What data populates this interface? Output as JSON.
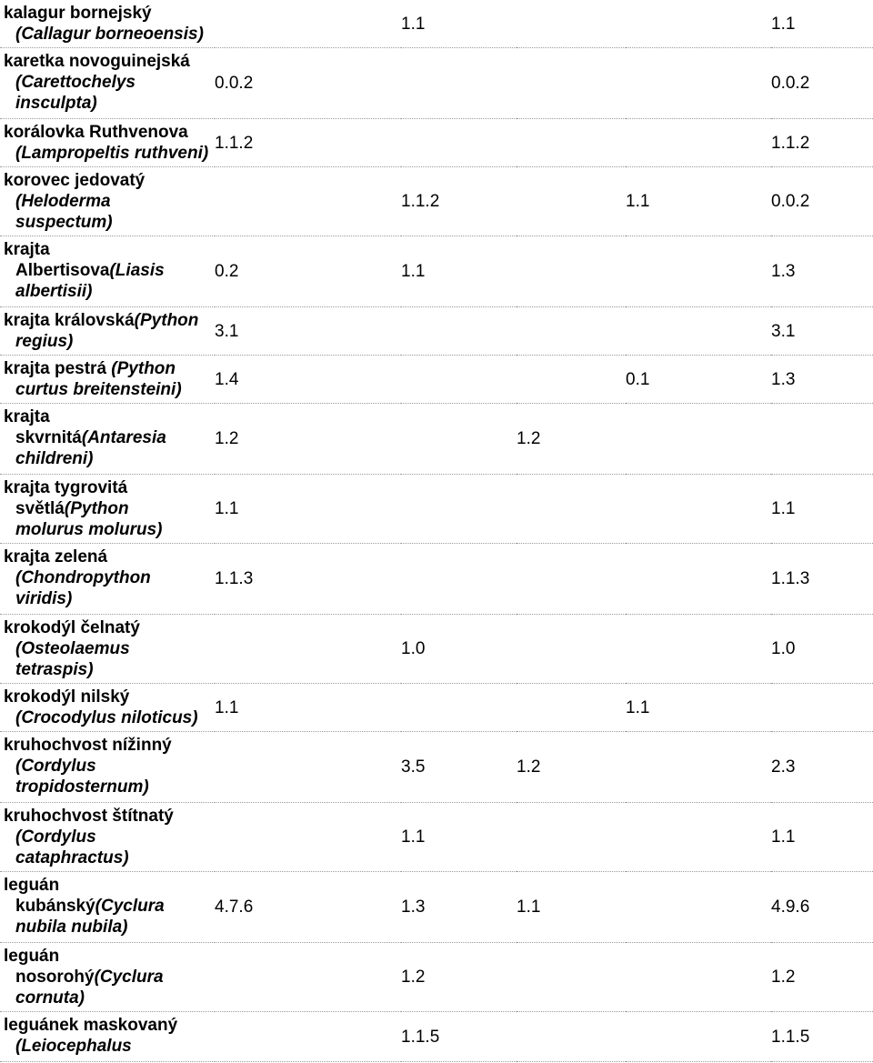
{
  "table": {
    "rows": [
      {
        "name_lines": [
          {
            "plain": "kalagur bornejský",
            "italic": ""
          },
          {
            "plain": "",
            "italic": "(Callagur borneoensis)"
          }
        ],
        "values": [
          "",
          "1.1",
          "",
          "",
          "1.1"
        ],
        "height": 50
      },
      {
        "name_lines": [
          {
            "plain": "karetka novoguinejská",
            "italic": ""
          },
          {
            "plain": "",
            "italic": "(Carettochelys"
          },
          {
            "plain": "",
            "italic": "insculpta)"
          }
        ],
        "values": [
          "0.0.2",
          "",
          "",
          "",
          "0.0.2"
        ],
        "height": 78
      },
      {
        "name_lines": [
          {
            "plain": "korálovka Ruthvenova",
            "italic": ""
          },
          {
            "plain": "",
            "italic": "(Lampropeltis ruthveni)"
          }
        ],
        "values": [
          "1.1.2",
          "",
          "",
          "",
          "1.1.2"
        ],
        "height": 52
      },
      {
        "name_lines": [
          {
            "plain": "korovec jedovatý",
            "italic": ""
          },
          {
            "plain": "",
            "italic": "(Heloderma"
          },
          {
            "plain": "",
            "italic": "suspectum)"
          }
        ],
        "values": [
          "",
          "1.1.2",
          "",
          "1.1",
          "0.0.2"
        ],
        "height": 76
      },
      {
        "name_lines": [
          {
            "plain": "krajta",
            "italic": ""
          },
          {
            "plain": "Albertisova",
            "italic": "(Liasis"
          },
          {
            "plain": "",
            "italic": "albertisii)"
          }
        ],
        "values": [
          "0.2",
          "1.1",
          "",
          "",
          "1.3"
        ],
        "height": 78
      },
      {
        "name_lines": [
          {
            "plain": "krajta královská",
            "italic": "(Python"
          },
          {
            "plain": "",
            "italic": "regius)"
          }
        ],
        "values": [
          "3.1",
          "",
          "",
          "",
          "3.1"
        ],
        "height": 52
      },
      {
        "name_lines": [
          {
            "plain": "krajta pestrá ",
            "italic": "(Python"
          },
          {
            "plain": "",
            "italic": "curtus breitensteini)"
          }
        ],
        "values": [
          "1.4",
          "",
          "",
          "0.1",
          "1.3"
        ],
        "height": 52
      },
      {
        "name_lines": [
          {
            "plain": "krajta",
            "italic": ""
          },
          {
            "plain": "skvrnitá",
            "italic": "(Antaresia"
          },
          {
            "plain": "",
            "italic": "childreni)"
          }
        ],
        "values": [
          "1.2",
          "",
          "1.2",
          "",
          ""
        ],
        "height": 78
      },
      {
        "name_lines": [
          {
            "plain": "krajta tygrovitá",
            "italic": ""
          },
          {
            "plain": "světlá",
            "italic": "(Python"
          },
          {
            "plain": "",
            "italic": "molurus molurus)"
          }
        ],
        "values": [
          "1.1",
          "",
          "",
          "",
          "1.1"
        ],
        "height": 76
      },
      {
        "name_lines": [
          {
            "plain": "krajta zelená",
            "italic": ""
          },
          {
            "plain": "",
            "italic": "(Chondropython"
          },
          {
            "plain": "",
            "italic": "viridis)"
          }
        ],
        "values": [
          "1.1.3",
          "",
          "",
          "",
          "1.1.3"
        ],
        "height": 78
      },
      {
        "name_lines": [
          {
            "plain": "krokodýl čelnatý",
            "italic": ""
          },
          {
            "plain": "",
            "italic": "(Osteolaemus"
          },
          {
            "plain": "",
            "italic": "tetraspis)"
          }
        ],
        "values": [
          "",
          "1.0",
          "",
          "",
          "1.0"
        ],
        "height": 76
      },
      {
        "name_lines": [
          {
            "plain": "krokodýl nilský",
            "italic": ""
          },
          {
            "plain": "",
            "italic": "(Crocodylus niloticus)"
          }
        ],
        "values": [
          "1.1",
          "",
          "",
          "1.1",
          ""
        ],
        "height": 52
      },
      {
        "name_lines": [
          {
            "plain": "kruhochvost nížinný",
            "italic": ""
          },
          {
            "plain": "",
            "italic": "(Cordylus"
          },
          {
            "plain": "",
            "italic": "tropidosternum)"
          }
        ],
        "values": [
          "",
          "3.5",
          "1.2",
          "",
          "2.3"
        ],
        "height": 78
      },
      {
        "name_lines": [
          {
            "plain": "kruhochvost štítnatý",
            "italic": ""
          },
          {
            "plain": "",
            "italic": "(Cordylus"
          },
          {
            "plain": "",
            "italic": "cataphractus)"
          }
        ],
        "values": [
          "",
          "1.1",
          "",
          "",
          "1.1"
        ],
        "height": 76
      },
      {
        "name_lines": [
          {
            "plain": "leguán",
            "italic": ""
          },
          {
            "plain": "kubánský",
            "italic": "(Cyclura"
          },
          {
            "plain": "",
            "italic": "nubila nubila)"
          }
        ],
        "values": [
          "4.7.6",
          "1.3",
          "1.1",
          "",
          "4.9.6"
        ],
        "height": 78
      },
      {
        "name_lines": [
          {
            "plain": "leguán",
            "italic": ""
          },
          {
            "plain": "nosorohý",
            "italic": "(Cyclura"
          },
          {
            "plain": "",
            "italic": "cornuta)"
          }
        ],
        "values": [
          "",
          "1.2",
          "",
          "",
          "1.2"
        ],
        "height": 76
      },
      {
        "name_lines": [
          {
            "plain": "leguánek maskovaný",
            "italic": ""
          },
          {
            "plain": "",
            "italic": "(Leiocephalus"
          }
        ],
        "values": [
          "",
          "1.1.5",
          "",
          "",
          "1.1.5"
        ],
        "height": 55
      }
    ]
  }
}
